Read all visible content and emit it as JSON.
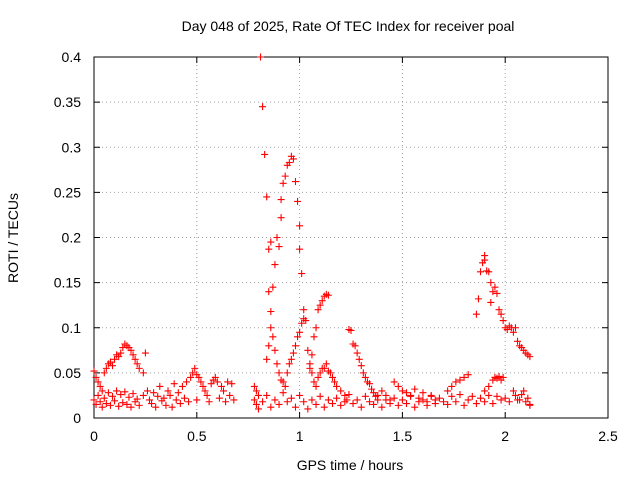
{
  "chart_data": {
    "type": "scatter",
    "title": "Day 048 of 2025, Rate Of TEC Index for receiver poal",
    "xlabel": "GPS time / hours",
    "ylabel": "ROTI / TECUs",
    "xlim": [
      0,
      2.5
    ],
    "ylim": [
      0,
      0.4
    ],
    "x_ticks": [
      0,
      0.5,
      1,
      1.5,
      2,
      2.5
    ],
    "x_tick_labels": [
      "0",
      "0.5",
      "1",
      "1.5",
      "2",
      "2.5"
    ],
    "y_ticks": [
      0,
      0.05,
      0.1,
      0.15,
      0.2,
      0.25,
      0.3,
      0.35,
      0.4
    ],
    "y_tick_labels": [
      "0",
      "0.05",
      "0.1",
      "0.15",
      "0.2",
      "0.25",
      "0.3",
      "0.35",
      "0.4"
    ],
    "grid": true,
    "marker": "+",
    "marker_color": "#ff0000",
    "series": [
      {
        "points": [
          [
            0.0,
            0.052
          ],
          [
            0.0,
            0.02
          ],
          [
            0.01,
            0.045
          ],
          [
            0.01,
            0.015
          ],
          [
            0.02,
            0.04
          ],
          [
            0.02,
            0.025
          ],
          [
            0.03,
            0.035
          ],
          [
            0.03,
            0.018
          ],
          [
            0.04,
            0.03
          ],
          [
            0.04,
            0.012
          ],
          [
            0.05,
            0.05
          ],
          [
            0.05,
            0.022
          ],
          [
            0.06,
            0.055
          ],
          [
            0.06,
            0.016
          ],
          [
            0.07,
            0.06
          ],
          [
            0.07,
            0.028
          ],
          [
            0.08,
            0.062
          ],
          [
            0.08,
            0.014
          ],
          [
            0.09,
            0.058
          ],
          [
            0.09,
            0.024
          ],
          [
            0.1,
            0.065
          ],
          [
            0.1,
            0.019
          ],
          [
            0.11,
            0.07
          ],
          [
            0.11,
            0.03
          ],
          [
            0.12,
            0.068
          ],
          [
            0.12,
            0.013
          ],
          [
            0.13,
            0.072
          ],
          [
            0.13,
            0.026
          ],
          [
            0.14,
            0.078
          ],
          [
            0.14,
            0.017
          ],
          [
            0.15,
            0.082
          ],
          [
            0.15,
            0.029
          ],
          [
            0.16,
            0.08
          ],
          [
            0.16,
            0.015
          ],
          [
            0.17,
            0.078
          ],
          [
            0.17,
            0.023
          ],
          [
            0.18,
            0.075
          ],
          [
            0.18,
            0.012
          ],
          [
            0.19,
            0.07
          ],
          [
            0.19,
            0.027
          ],
          [
            0.2,
            0.065
          ],
          [
            0.2,
            0.018
          ],
          [
            0.21,
            0.06
          ],
          [
            0.21,
            0.021
          ],
          [
            0.22,
            0.055
          ],
          [
            0.22,
            0.014
          ],
          [
            0.24,
            0.05
          ],
          [
            0.24,
            0.025
          ],
          [
            0.25,
            0.072
          ],
          [
            0.26,
            0.03
          ],
          [
            0.27,
            0.02
          ],
          [
            0.28,
            0.016
          ],
          [
            0.29,
            0.028
          ],
          [
            0.3,
            0.012
          ],
          [
            0.31,
            0.024
          ],
          [
            0.32,
            0.035
          ],
          [
            0.33,
            0.019
          ],
          [
            0.34,
            0.022
          ],
          [
            0.35,
            0.014
          ],
          [
            0.36,
            0.03
          ],
          [
            0.37,
            0.025
          ],
          [
            0.38,
            0.012
          ],
          [
            0.39,
            0.038
          ],
          [
            0.4,
            0.02
          ],
          [
            0.41,
            0.028
          ],
          [
            0.42,
            0.016
          ],
          [
            0.43,
            0.035
          ],
          [
            0.44,
            0.022
          ],
          [
            0.45,
            0.04
          ],
          [
            0.46,
            0.018
          ],
          [
            0.47,
            0.045
          ],
          [
            0.48,
            0.05
          ],
          [
            0.49,
            0.055
          ],
          [
            0.5,
            0.048
          ],
          [
            0.5,
            0.02
          ],
          [
            0.51,
            0.045
          ],
          [
            0.52,
            0.04
          ],
          [
            0.53,
            0.035
          ],
          [
            0.54,
            0.03
          ],
          [
            0.55,
            0.025
          ],
          [
            0.56,
            0.018
          ],
          [
            0.57,
            0.038
          ],
          [
            0.58,
            0.042
          ],
          [
            0.59,
            0.045
          ],
          [
            0.6,
            0.04
          ],
          [
            0.61,
            0.022
          ],
          [
            0.62,
            0.035
          ],
          [
            0.63,
            0.03
          ],
          [
            0.64,
            0.018
          ],
          [
            0.65,
            0.04
          ],
          [
            0.66,
            0.025
          ],
          [
            0.67,
            0.038
          ],
          [
            0.68,
            0.02
          ],
          [
            0.78,
            0.02
          ],
          [
            0.78,
            0.035
          ],
          [
            0.79,
            0.03
          ],
          [
            0.79,
            0.015
          ],
          [
            0.8,
            0.025
          ],
          [
            0.81,
            0.4
          ],
          [
            0.82,
            0.345
          ],
          [
            0.83,
            0.292
          ],
          [
            0.84,
            0.245
          ],
          [
            0.85,
            0.187
          ],
          [
            0.85,
            0.14
          ],
          [
            0.86,
            0.195
          ],
          [
            0.87,
            0.145
          ],
          [
            0.88,
            0.17
          ],
          [
            0.89,
            0.2
          ],
          [
            0.9,
            0.19
          ],
          [
            0.91,
            0.222
          ],
          [
            0.91,
            0.242
          ],
          [
            0.92,
            0.26
          ],
          [
            0.93,
            0.268
          ],
          [
            0.94,
            0.28
          ],
          [
            0.95,
            0.283
          ],
          [
            0.96,
            0.29
          ],
          [
            0.97,
            0.287
          ],
          [
            0.98,
            0.262
          ],
          [
            0.99,
            0.24
          ],
          [
            1.0,
            0.213
          ],
          [
            1.0,
            0.187
          ],
          [
            1.01,
            0.16
          ],
          [
            0.84,
            0.065
          ],
          [
            0.85,
            0.08
          ],
          [
            0.86,
            0.1
          ],
          [
            0.86,
            0.118
          ],
          [
            0.87,
            0.09
          ],
          [
            0.88,
            0.075
          ],
          [
            0.89,
            0.06
          ],
          [
            0.9,
            0.05
          ],
          [
            0.91,
            0.042
          ],
          [
            0.92,
            0.04
          ],
          [
            0.93,
            0.035
          ],
          [
            0.94,
            0.05
          ],
          [
            0.95,
            0.06
          ],
          [
            0.96,
            0.065
          ],
          [
            0.97,
            0.072
          ],
          [
            0.98,
            0.08
          ],
          [
            0.99,
            0.09
          ],
          [
            1.0,
            0.095
          ],
          [
            1.01,
            0.105
          ],
          [
            1.02,
            0.12
          ],
          [
            1.02,
            0.11
          ],
          [
            1.03,
            0.108
          ],
          [
            1.04,
            0.075
          ],
          [
            1.05,
            0.06
          ],
          [
            1.06,
            0.07
          ],
          [
            1.07,
            0.09
          ],
          [
            1.08,
            0.1
          ],
          [
            1.09,
            0.12
          ],
          [
            1.1,
            0.125
          ],
          [
            1.11,
            0.13
          ],
          [
            1.12,
            0.135
          ],
          [
            1.13,
            0.137
          ],
          [
            1.14,
            0.136
          ],
          [
            1.05,
            0.055
          ],
          [
            1.06,
            0.05
          ],
          [
            1.07,
            0.04
          ],
          [
            1.08,
            0.035
          ],
          [
            1.09,
            0.045
          ],
          [
            1.1,
            0.05
          ],
          [
            1.11,
            0.055
          ],
          [
            1.12,
            0.055
          ],
          [
            1.13,
            0.06
          ],
          [
            1.14,
            0.052
          ],
          [
            1.15,
            0.05
          ],
          [
            1.16,
            0.045
          ],
          [
            1.17,
            0.04
          ],
          [
            1.18,
            0.035
          ],
          [
            1.2,
            0.03
          ],
          [
            1.22,
            0.025
          ],
          [
            1.23,
            0.02
          ],
          [
            1.24,
            0.098
          ],
          [
            1.25,
            0.097
          ],
          [
            1.26,
            0.082
          ],
          [
            1.27,
            0.08
          ],
          [
            1.28,
            0.072
          ],
          [
            1.29,
            0.065
          ],
          [
            1.3,
            0.058
          ],
          [
            1.31,
            0.05
          ],
          [
            1.32,
            0.045
          ],
          [
            1.33,
            0.04
          ],
          [
            1.34,
            0.038
          ],
          [
            1.35,
            0.032
          ],
          [
            1.36,
            0.028
          ],
          [
            1.37,
            0.024
          ],
          [
            1.38,
            0.02
          ],
          [
            1.4,
            0.03
          ],
          [
            1.42,
            0.025
          ],
          [
            1.44,
            0.02
          ],
          [
            1.46,
            0.04
          ],
          [
            1.48,
            0.035
          ],
          [
            1.5,
            0.03
          ],
          [
            1.52,
            0.028
          ],
          [
            1.54,
            0.025
          ],
          [
            1.56,
            0.032
          ],
          [
            1.58,
            0.022
          ],
          [
            1.6,
            0.028
          ],
          [
            1.62,
            0.018
          ],
          [
            1.64,
            0.024
          ],
          [
            1.66,
            0.02
          ],
          [
            1.72,
            0.03
          ],
          [
            1.74,
            0.035
          ],
          [
            1.76,
            0.04
          ],
          [
            1.78,
            0.042
          ],
          [
            1.8,
            0.045
          ],
          [
            1.82,
            0.048
          ],
          [
            1.86,
            0.115
          ],
          [
            1.87,
            0.132
          ],
          [
            1.88,
            0.162
          ],
          [
            1.89,
            0.172
          ],
          [
            1.9,
            0.18
          ],
          [
            1.9,
            0.175
          ],
          [
            1.91,
            0.163
          ],
          [
            1.92,
            0.162
          ],
          [
            1.93,
            0.15
          ],
          [
            1.93,
            0.128
          ],
          [
            1.94,
            0.14
          ],
          [
            1.95,
            0.145
          ],
          [
            1.96,
            0.138
          ],
          [
            1.97,
            0.12
          ],
          [
            1.98,
            0.115
          ],
          [
            1.99,
            0.108
          ],
          [
            2.0,
            0.1
          ],
          [
            2.01,
            0.098
          ],
          [
            2.02,
            0.102
          ],
          [
            2.03,
            0.1
          ],
          [
            2.04,
            0.095
          ],
          [
            2.05,
            0.1
          ],
          [
            2.06,
            0.085
          ],
          [
            2.07,
            0.08
          ],
          [
            2.08,
            0.078
          ],
          [
            2.09,
            0.075
          ],
          [
            2.1,
            0.072
          ],
          [
            2.11,
            0.07
          ],
          [
            2.12,
            0.068
          ],
          [
            1.9,
            0.03
          ],
          [
            1.92,
            0.035
          ],
          [
            1.94,
            0.042
          ],
          [
            1.95,
            0.045
          ],
          [
            1.96,
            0.044
          ],
          [
            1.97,
            0.046
          ],
          [
            1.98,
            0.042
          ],
          [
            1.99,
            0.045
          ],
          [
            2.05,
            0.025
          ],
          [
            2.07,
            0.02
          ],
          [
            2.09,
            0.03
          ],
          [
            2.11,
            0.022
          ],
          [
            2.12,
            0.015
          ],
          [
            0.8,
            0.01
          ],
          [
            0.82,
            0.018
          ],
          [
            0.84,
            0.025
          ],
          [
            0.86,
            0.012
          ],
          [
            0.88,
            0.02
          ],
          [
            0.9,
            0.015
          ],
          [
            0.92,
            0.028
          ],
          [
            0.94,
            0.018
          ],
          [
            0.96,
            0.022
          ],
          [
            0.98,
            0.012
          ],
          [
            1.0,
            0.025
          ],
          [
            1.02,
            0.018
          ],
          [
            1.04,
            0.01
          ],
          [
            1.06,
            0.02
          ],
          [
            1.08,
            0.015
          ],
          [
            1.1,
            0.024
          ],
          [
            1.12,
            0.012
          ],
          [
            1.14,
            0.02
          ],
          [
            1.16,
            0.016
          ],
          [
            1.18,
            0.022
          ],
          [
            1.2,
            0.014
          ],
          [
            1.22,
            0.018
          ],
          [
            1.24,
            0.026
          ],
          [
            1.26,
            0.016
          ],
          [
            1.28,
            0.02
          ],
          [
            1.3,
            0.012
          ],
          [
            1.32,
            0.024
          ],
          [
            1.34,
            0.018
          ],
          [
            1.36,
            0.015
          ],
          [
            1.38,
            0.025
          ],
          [
            1.4,
            0.012
          ],
          [
            1.42,
            0.02
          ],
          [
            1.44,
            0.016
          ],
          [
            1.46,
            0.022
          ],
          [
            1.48,
            0.014
          ],
          [
            1.5,
            0.02
          ],
          [
            1.52,
            0.016
          ],
          [
            1.54,
            0.024
          ],
          [
            1.56,
            0.012
          ],
          [
            1.58,
            0.018
          ],
          [
            1.6,
            0.02
          ],
          [
            1.62,
            0.014
          ],
          [
            1.64,
            0.025
          ],
          [
            1.66,
            0.016
          ],
          [
            1.68,
            0.022
          ],
          [
            1.7,
            0.018
          ],
          [
            1.72,
            0.015
          ],
          [
            1.74,
            0.024
          ],
          [
            1.76,
            0.018
          ],
          [
            1.78,
            0.026
          ],
          [
            1.8,
            0.014
          ],
          [
            1.82,
            0.02
          ],
          [
            1.84,
            0.024
          ],
          [
            1.86,
            0.016
          ],
          [
            1.88,
            0.022
          ],
          [
            1.9,
            0.018
          ],
          [
            1.92,
            0.025
          ],
          [
            1.94,
            0.016
          ],
          [
            1.96,
            0.024
          ],
          [
            1.98,
            0.02
          ],
          [
            2.0,
            0.022
          ],
          [
            2.02,
            0.018
          ],
          [
            2.04,
            0.03
          ],
          [
            2.06,
            0.02
          ],
          [
            2.08,
            0.026
          ],
          [
            2.1,
            0.018
          ],
          [
            2.12,
            0.014
          ]
        ]
      }
    ]
  }
}
